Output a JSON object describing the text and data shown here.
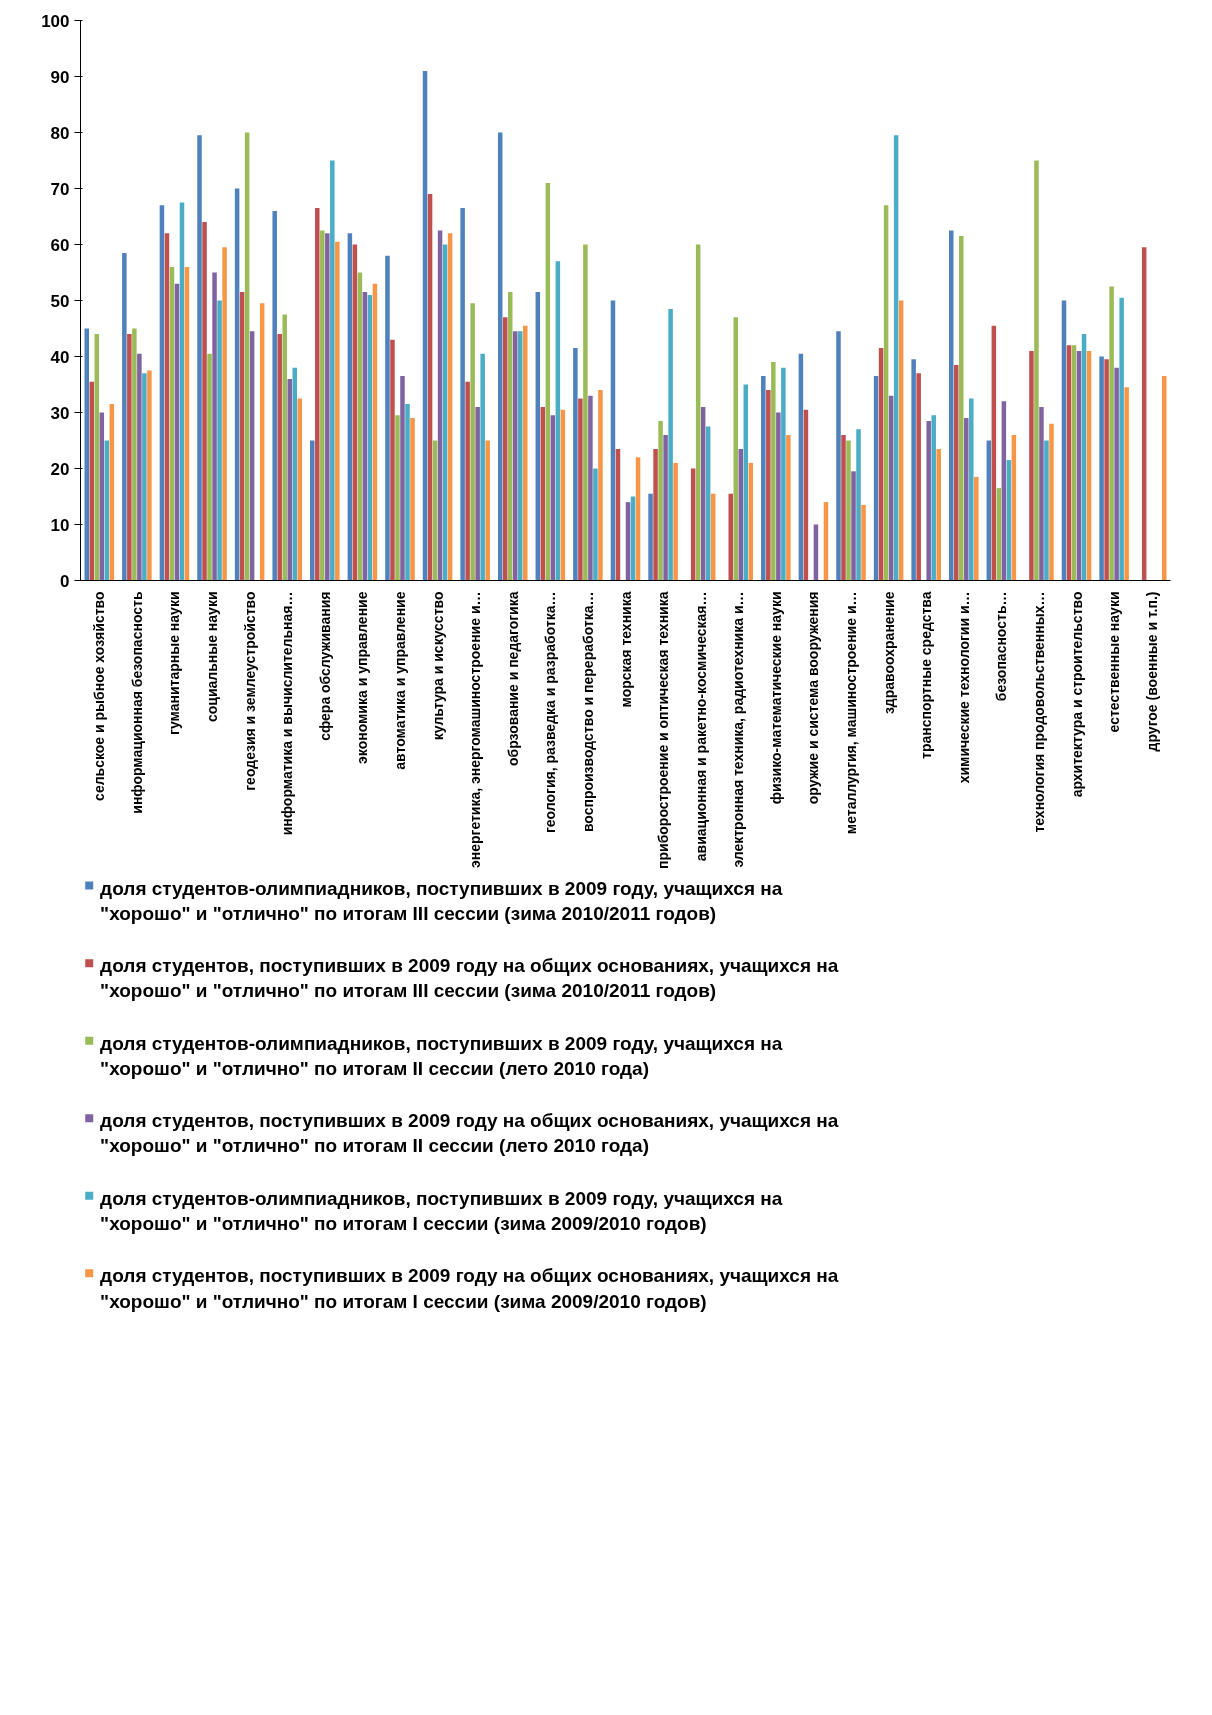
{
  "chart_data": {
    "type": "bar",
    "categories": [
      "сельское и рыбное хозяйство",
      "информационная безопасность",
      "гуманитарные науки",
      "социальные науки",
      "геодезия и землеустройство",
      "информатика и вычислительная…",
      "сфера обслуживания",
      "экономика и управление",
      "автоматика и управление",
      "культура и искусство",
      "энергетика, энергомашиностроение и…",
      "обрзование и педагогика",
      "геология, разведка и разработка…",
      "воспроизводство и переработка…",
      "морская техника",
      "приборостроение и оптическая техника",
      "авиационная и ракетно-космическая…",
      "электронная техника, радиотехника и…",
      "физико-математические науки",
      "оружие и система вооружения",
      "металлургия, машиностроение и…",
      "здравоохранение",
      "транспортные средства",
      "химические технологии и…",
      "безопасность…",
      "технология продовольственных…",
      "архитектура и строительство",
      "естественные науки",
      "другое (военные и т.п.)"
    ],
    "series": [
      {
        "name": "доля студентов-олимпиадников, поступивших в 2009 году,  учащихся на \"хорошо\" и \"отлично\" по итогам III сессии (зима 2010/2011 годов)",
        "color": "#4f81bd",
        "values": [
          45,
          58.5,
          67,
          79.5,
          70,
          66,
          25,
          62,
          58,
          91,
          66.5,
          80,
          51.5,
          41.5,
          50,
          15.5,
          null,
          null,
          36.5,
          40.5,
          44.5,
          36.5,
          39.5,
          62.5,
          25,
          null,
          50,
          40,
          null
        ]
      },
      {
        "name": "доля студентов, поступивших в 2009 году на общих основаниях, учащихся на \"хорошо\" и \"отлично\" по итогам III сессии (зима 2010/2011 годов)",
        "color": "#c0504d",
        "values": [
          35.5,
          44,
          62,
          64,
          51.5,
          44,
          66.5,
          60,
          43,
          69,
          35.5,
          47,
          31,
          32.5,
          23.5,
          23.5,
          20,
          15.5,
          34,
          30.5,
          26,
          41.5,
          37,
          38.5,
          45.5,
          41,
          42,
          39.5,
          59.5
        ]
      },
      {
        "name": "доля студентов-олимпиадников, поступивших в 2009 году,  учащихся на \"хорошо\" и \"отлично\" по итогам II сессии (лето 2010 года)",
        "color": "#9bbb59",
        "values": [
          44,
          45,
          56,
          40.5,
          80,
          47.5,
          62.5,
          55,
          29.5,
          25,
          49.5,
          51.5,
          71,
          60,
          null,
          28.5,
          60,
          47,
          39,
          null,
          25,
          67,
          null,
          61.5,
          16.5,
          75,
          42,
          52.5,
          null
        ]
      },
      {
        "name": "доля студентов, поступивших в 2009 году на общих основаниях, учащихся на \"хорошо\" и \"отлично\" по итогам II сессии (лето 2010 года)",
        "color": "#8064a2",
        "values": [
          30,
          40.5,
          53,
          55,
          44.5,
          36,
          62,
          51.5,
          36.5,
          62.5,
          31,
          44.5,
          29.5,
          33,
          14,
          26,
          31,
          23.5,
          30,
          10,
          19.5,
          33,
          28.5,
          29,
          32,
          31,
          41,
          38,
          null
        ]
      },
      {
        "name": "доля студентов-олимпиадников, поступивших в 2009 году,  учащихся на \"хорошо\" и \"отлично\" по итогам I сессии (зима 2009/2010 годов)",
        "color": "#4bacc6",
        "values": [
          25,
          37,
          67.5,
          50,
          null,
          38,
          75,
          51,
          31.5,
          60,
          40.5,
          44.5,
          57,
          20,
          15,
          48.5,
          27.5,
          35,
          38,
          null,
          27,
          79.5,
          29.5,
          32.5,
          21.5,
          25,
          44,
          50.5,
          null
        ]
      },
      {
        "name": "доля студентов, поступивших в 2009 году на общих основаниях, учащихся на \"хорошо\" и \"отлично\" по итогам I сессии (зима 2009/2010 годов)",
        "color": "#f79646",
        "values": [
          31.5,
          37.5,
          56,
          59.5,
          49.5,
          32.5,
          60.5,
          53,
          29,
          62,
          25,
          45.5,
          30.5,
          34,
          22,
          21,
          15.5,
          21,
          26,
          14,
          13.5,
          50,
          23.5,
          18.5,
          26,
          28,
          41,
          34.5,
          36.5
        ]
      }
    ],
    "ylim": [
      0,
      100
    ],
    "yticks": [
      0,
      10,
      20,
      30,
      40,
      50,
      60,
      70,
      80,
      90,
      100
    ],
    "grid": false,
    "legend": "bottom"
  }
}
